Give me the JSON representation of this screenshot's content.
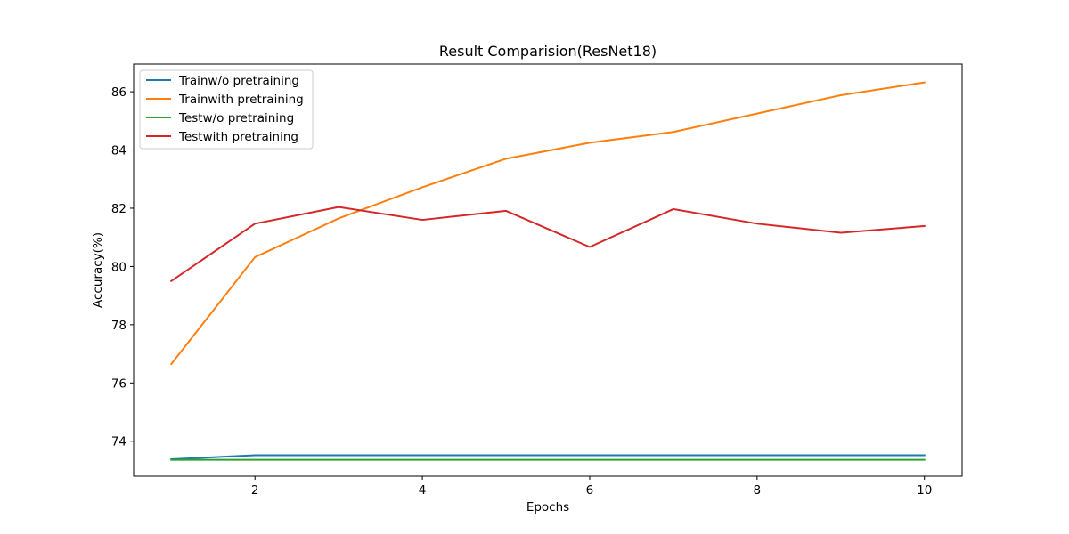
{
  "chart_data": {
    "type": "line",
    "title": "Result Comparision(ResNet18)",
    "xlabel": "Epochs",
    "ylabel": "Accuracy(%)",
    "x": [
      1,
      2,
      3,
      4,
      5,
      6,
      7,
      8,
      9,
      10
    ],
    "xlim": [
      0.55,
      10.45
    ],
    "ylim": [
      72.8,
      86.95
    ],
    "xticks": [
      2,
      4,
      6,
      8,
      10
    ],
    "yticks": [
      74,
      76,
      78,
      80,
      82,
      84,
      86
    ],
    "xtick_labels": [
      "2",
      "4",
      "6",
      "8",
      "10"
    ],
    "ytick_labels": [
      "74",
      "76",
      "78",
      "80",
      "82",
      "84",
      "86"
    ],
    "grid": false,
    "legend_position": "top-left",
    "series": [
      {
        "name": "Trainw/o pretraining",
        "color": "#1f77b4",
        "values": [
          73.38,
          73.52,
          73.52,
          73.52,
          73.52,
          73.52,
          73.52,
          73.52,
          73.52,
          73.52
        ]
      },
      {
        "name": "Trainwith pretraining",
        "color": "#ff7f0e",
        "values": [
          76.65,
          80.32,
          81.65,
          82.72,
          83.7,
          84.25,
          84.62,
          85.25,
          85.88,
          86.32
        ]
      },
      {
        "name": "Testw/o pretraining",
        "color": "#2ca02c",
        "values": [
          73.36,
          73.36,
          73.36,
          73.36,
          73.36,
          73.36,
          73.36,
          73.36,
          73.36,
          73.36
        ]
      },
      {
        "name": "Testwith pretraining",
        "color": "#d62728",
        "values": [
          79.5,
          81.47,
          82.04,
          81.6,
          81.91,
          80.67,
          81.97,
          81.47,
          81.16,
          81.39
        ]
      }
    ]
  }
}
